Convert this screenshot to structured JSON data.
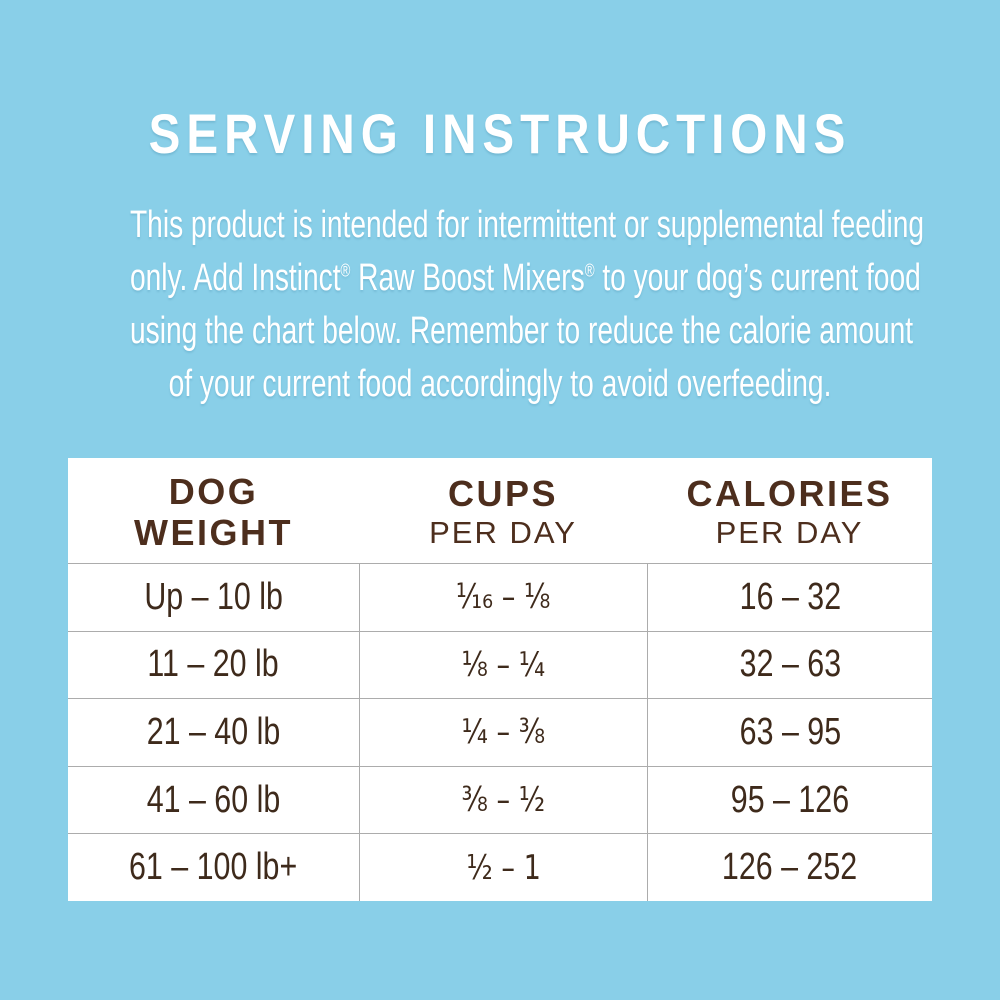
{
  "panel": {
    "title": "SERVING INSTRUCTIONS",
    "intro": {
      "line1": "This product is intended for intermittent or supplemental feeding",
      "line2_parts": {
        "a": "only. Add Instinct",
        "reg1": "®",
        "b": " Raw Boost Mixers",
        "reg2": "®",
        "c": " to your dog’s current food"
      },
      "line3": "using the chart below. Remember to reduce the calorie amount",
      "line4": "of your current food accordingly to avoid overfeeding."
    }
  },
  "table": {
    "columns": [
      {
        "line1": "DOG",
        "line2": "WEIGHT"
      },
      {
        "line1": "CUPS",
        "line2": "PER DAY"
      },
      {
        "line1": "CALORIES",
        "line2": "PER DAY"
      }
    ],
    "rows": [
      {
        "weight": "Up – 10 lb",
        "cups": "¹⁄₁₆ – ⅛",
        "calories": "16 – 32"
      },
      {
        "weight": "11 – 20 lb",
        "cups": "⅛ – ¼",
        "calories": "32 – 63"
      },
      {
        "weight": "21 – 40 lb",
        "cups": "¼ – ⅜",
        "calories": "63 – 95"
      },
      {
        "weight": "41 – 60 lb",
        "cups": "⅜ – ½",
        "calories": "95 – 126"
      },
      {
        "weight": "61 – 100 lb+",
        "cups": "½ – 1",
        "calories": "126 – 252"
      }
    ]
  },
  "colors": {
    "background_blue": "#89CFE8",
    "panel_white": "#FFFFFF",
    "text_white": "#FFFFFF",
    "text_brown_header": "#4D2E1D",
    "text_brown_data": "#3E2A1B",
    "grid_line_gray": "#ACACAC"
  }
}
